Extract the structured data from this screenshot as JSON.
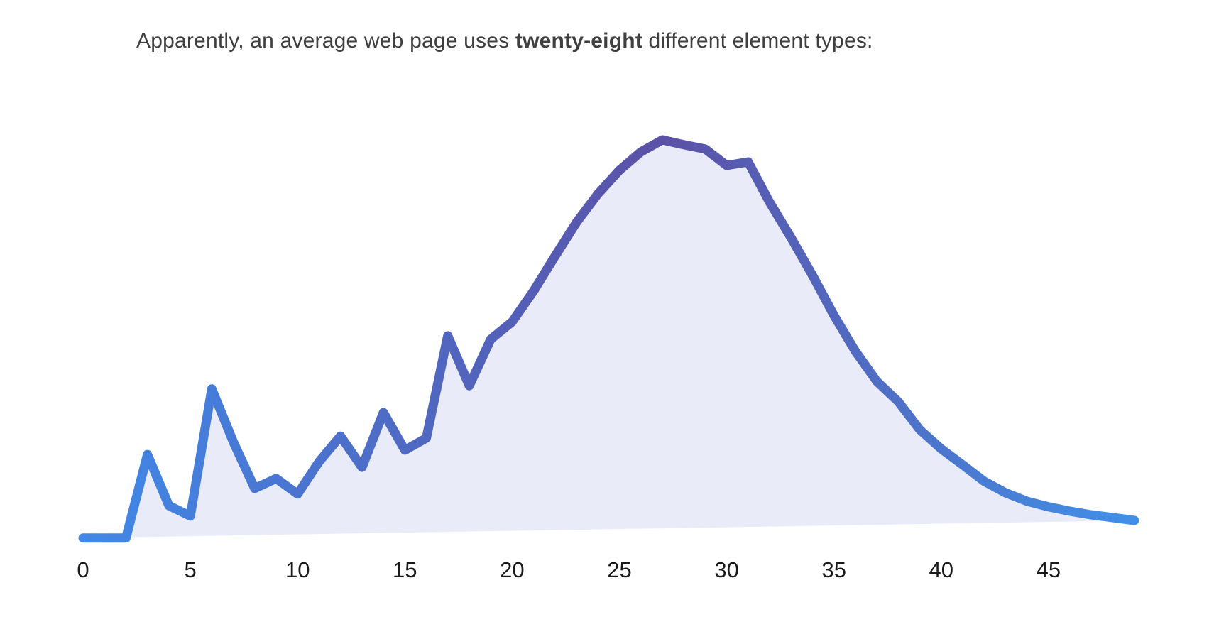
{
  "title": {
    "prefix": "Apparently, an average web page uses ",
    "highlight": "twenty-eight",
    "suffix": " different element types:"
  },
  "colors": {
    "background": "#ffffff",
    "line_gradient_start": "#4089e8",
    "line_gradient_mid": "#5b51a6",
    "line_gradient_end": "#4190e8",
    "area_fill": "#e9ecf8",
    "title_text": "#3f3f3f",
    "axis_label_text": "#1a1a1a"
  },
  "chart_data": {
    "type": "area",
    "title": "Apparently, an average web page uses twenty-eight different element types:",
    "xlabel": "",
    "ylabel": "",
    "x_ticks": [
      0,
      5,
      10,
      15,
      20,
      25,
      30,
      35,
      40,
      45
    ],
    "x_range": [
      0,
      49
    ],
    "y_unit": "relative frequency (peak normalized to 100, no y-axis shown)",
    "y_range": [
      0,
      100
    ],
    "grid": false,
    "legend": false,
    "x": [
      0,
      1,
      2,
      3,
      4,
      5,
      6,
      7,
      8,
      9,
      10,
      11,
      12,
      13,
      14,
      15,
      16,
      17,
      18,
      19,
      20,
      21,
      22,
      23,
      24,
      25,
      26,
      27,
      28,
      29,
      30,
      31,
      32,
      33,
      34,
      35,
      36,
      37,
      38,
      39,
      40,
      41,
      42,
      43,
      44,
      45,
      46,
      47,
      48,
      49
    ],
    "values": [
      0.4,
      0.4,
      0.4,
      21.3,
      8.5,
      5.9,
      37.7,
      24.5,
      12.8,
      15.3,
      11.4,
      19.5,
      25.9,
      18.1,
      31.8,
      22.4,
      25.4,
      51.0,
      38.5,
      50.1,
      54.5,
      62.2,
      70.9,
      79.4,
      86.5,
      92.4,
      97.0,
      100.0,
      98.8,
      97.7,
      93.6,
      94.5,
      84.4,
      75.5,
      66.1,
      56.1,
      47.1,
      39.6,
      34.5,
      27.5,
      22.7,
      18.7,
      14.6,
      11.7,
      9.6,
      8.2,
      7.1,
      6.2,
      5.5,
      4.8
    ]
  }
}
